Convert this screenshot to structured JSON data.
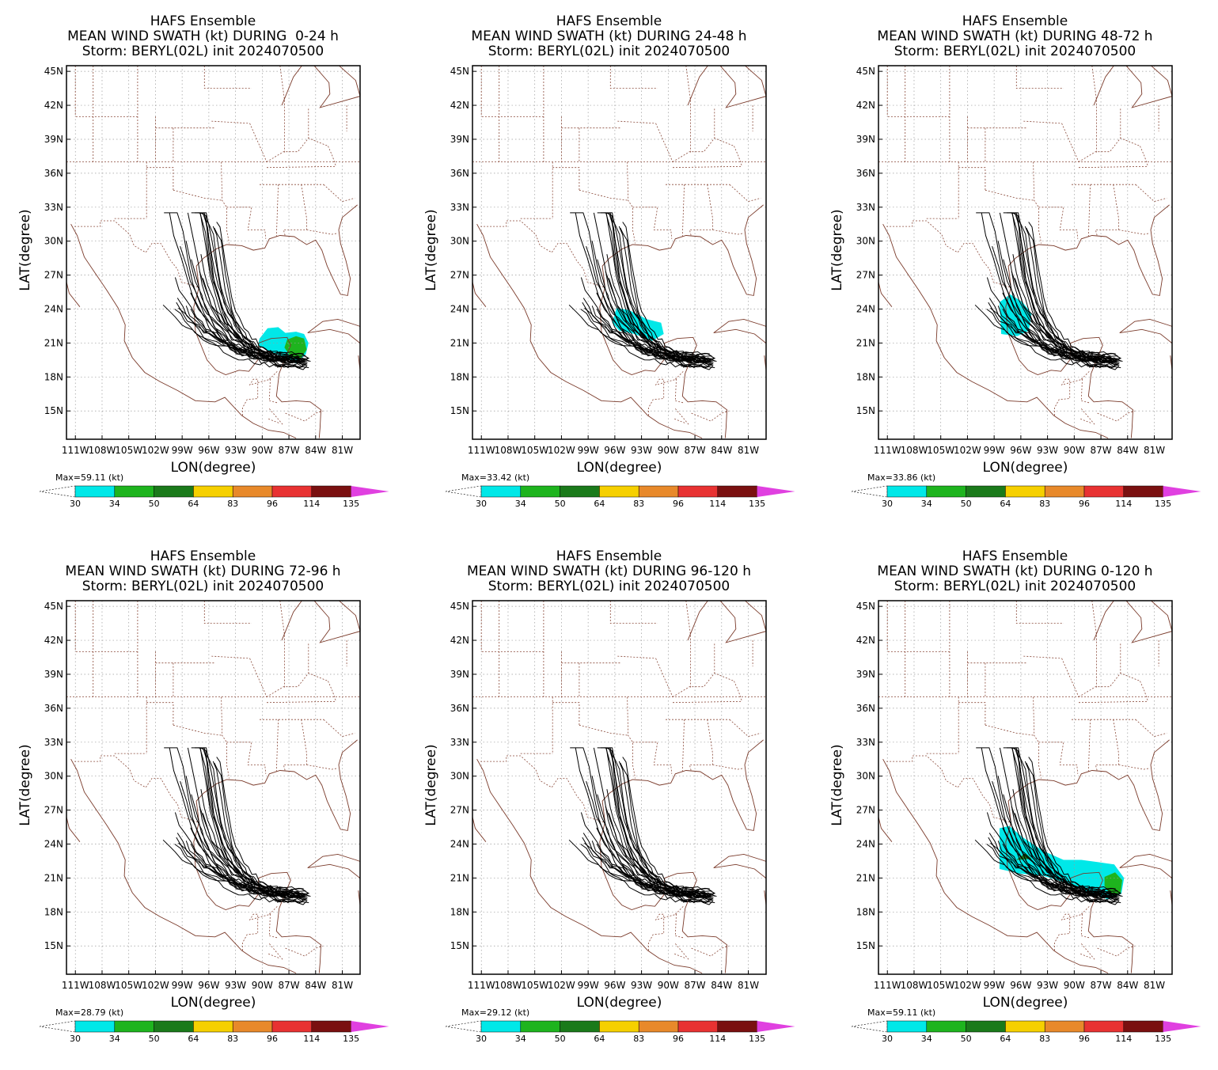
{
  "common": {
    "ensemble_title": "HAFS Ensemble",
    "storm_line": "Storm: BERYL(02L) init 2024070500",
    "xlabel": "LON(degree)",
    "ylabel": "LAT(degree)",
    "lat_ticks": [
      "45N",
      "42N",
      "39N",
      "36N",
      "33N",
      "30N",
      "27N",
      "24N",
      "21N",
      "18N",
      "15N"
    ],
    "lon_ticks": [
      "111W",
      "108W",
      "105W",
      "102W",
      "99W",
      "96W",
      "93W",
      "90W",
      "87W",
      "84W",
      "81W"
    ],
    "colorbar": {
      "labels": [
        "30",
        "34",
        "50",
        "64",
        "83",
        "96",
        "114",
        "135"
      ],
      "colors": [
        "#00e8e8",
        "#1eb41e",
        "#1a7a1a",
        "#f6d000",
        "#e8892a",
        "#e83232",
        "#7a1010",
        "#e040e0"
      ]
    }
  },
  "panels": [
    {
      "period_line": "MEAN WIND SWATH (kt) DURING  0-24 h",
      "max_label": "Max=59.11 (kt)",
      "swath": "early"
    },
    {
      "period_line": "MEAN WIND SWATH (kt) DURING 24-48 h",
      "max_label": "Max=33.42 (kt)",
      "swath": "mid"
    },
    {
      "period_line": "MEAN WIND SWATH (kt) DURING 48-72 h",
      "max_label": "Max=33.86 (kt)",
      "swath": "late"
    },
    {
      "period_line": "MEAN WIND SWATH (kt) DURING 72-96 h",
      "max_label": "Max=28.79 (kt)",
      "swath": "none"
    },
    {
      "period_line": "MEAN WIND SWATH (kt) DURING 96-120 h",
      "max_label": "Max=29.12 (kt)",
      "swath": "none"
    },
    {
      "period_line": "MEAN WIND SWATH (kt) DURING 0-120 h",
      "max_label": "Max=59.11 (kt)",
      "swath": "full"
    }
  ]
}
